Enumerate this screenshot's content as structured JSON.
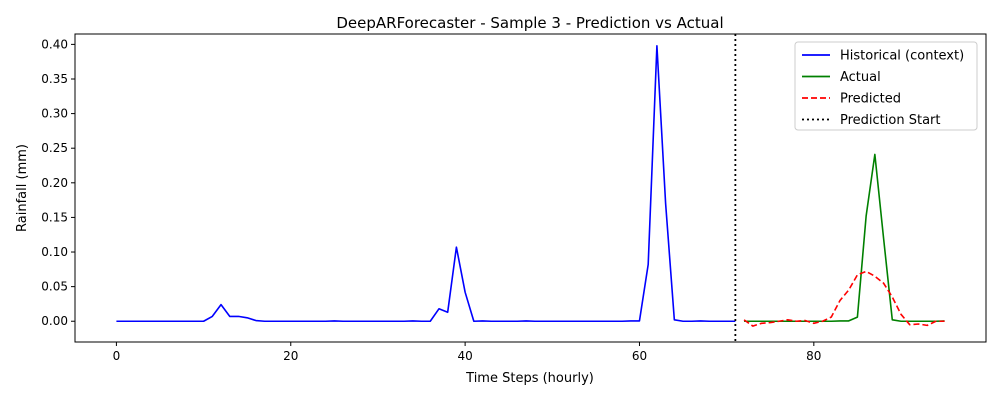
{
  "chart_data": {
    "type": "line",
    "title": "DeepARForecaster - Sample 3 - Prediction vs Actual",
    "xlabel": "Time Steps (hourly)",
    "ylabel": "Rainfall (mm)",
    "xlim": [
      -4.75,
      99.75
    ],
    "ylim": [
      -0.03,
      0.415
    ],
    "xticks": [
      0,
      20,
      40,
      60,
      80
    ],
    "yticks": [
      0.0,
      0.05,
      0.1,
      0.15,
      0.2,
      0.25,
      0.3,
      0.35,
      0.4
    ],
    "ytick_labels": [
      "0.00",
      "0.05",
      "0.10",
      "0.15",
      "0.20",
      "0.25",
      "0.30",
      "0.35",
      "0.40"
    ],
    "grid": false,
    "legend_position": "top-right",
    "series": [
      {
        "name": "Historical (context)",
        "color": "#0000ff",
        "style": "solid",
        "x": [
          0,
          1,
          2,
          3,
          4,
          5,
          6,
          7,
          8,
          9,
          10,
          11,
          12,
          13,
          14,
          15,
          16,
          17,
          18,
          19,
          20,
          21,
          22,
          23,
          24,
          25,
          26,
          27,
          28,
          29,
          30,
          31,
          32,
          33,
          34,
          35,
          36,
          37,
          38,
          39,
          40,
          41,
          42,
          43,
          44,
          45,
          46,
          47,
          48,
          49,
          50,
          51,
          52,
          53,
          54,
          55,
          56,
          57,
          58,
          59,
          60,
          61,
          62,
          63,
          64,
          65,
          66,
          67,
          68,
          69,
          70,
          71
        ],
        "values": [
          0,
          0,
          0,
          0,
          0,
          0,
          0,
          0,
          0,
          0,
          0,
          0.007,
          0.024,
          0.007,
          0.007,
          0.005,
          0.001,
          0,
          0,
          0,
          0,
          0,
          0,
          0,
          0,
          0.0005,
          0,
          0,
          0,
          0,
          0,
          0,
          0,
          0,
          0.0005,
          0,
          0,
          0.018,
          0.013,
          0.107,
          0.042,
          0,
          0.0005,
          0,
          0,
          0,
          0,
          0.0005,
          0,
          0,
          0,
          0,
          0,
          0,
          0,
          0,
          0,
          0,
          0,
          0.0005,
          0.0005,
          0.082,
          0.398,
          0.17,
          0.002,
          0,
          0,
          0.0005,
          0,
          0,
          0,
          0
        ]
      },
      {
        "name": "Actual",
        "color": "#008000",
        "style": "solid",
        "x": [
          72,
          73,
          74,
          75,
          76,
          77,
          78,
          79,
          80,
          81,
          82,
          83,
          84,
          85,
          86,
          87,
          88,
          89,
          90,
          91,
          92,
          93,
          94,
          95
        ],
        "values": [
          0,
          0,
          0,
          0,
          0,
          0,
          0,
          0,
          0,
          0,
          0,
          0.0005,
          0.0005,
          0.006,
          0.152,
          0.241,
          0.12,
          0.002,
          0,
          0,
          0,
          0,
          0,
          0.0005
        ]
      },
      {
        "name": "Predicted",
        "color": "#ff0000",
        "style": "dashed",
        "x": [
          72,
          73,
          74,
          75,
          76,
          77,
          78,
          79,
          80,
          81,
          82,
          83,
          84,
          85,
          86,
          87,
          88,
          89,
          90,
          91,
          92,
          93,
          94,
          95
        ],
        "values": [
          0.002,
          -0.007,
          -0.003,
          -0.002,
          0,
          0.002,
          0,
          0.001,
          -0.003,
          0,
          0.006,
          0.03,
          0.045,
          0.067,
          0.072,
          0.065,
          0.055,
          0.035,
          0.01,
          -0.005,
          -0.004,
          -0.006,
          0,
          0
        ]
      },
      {
        "name": "Prediction Start",
        "color": "#000000",
        "style": "dotted-vertical",
        "x": [
          71
        ]
      }
    ]
  }
}
